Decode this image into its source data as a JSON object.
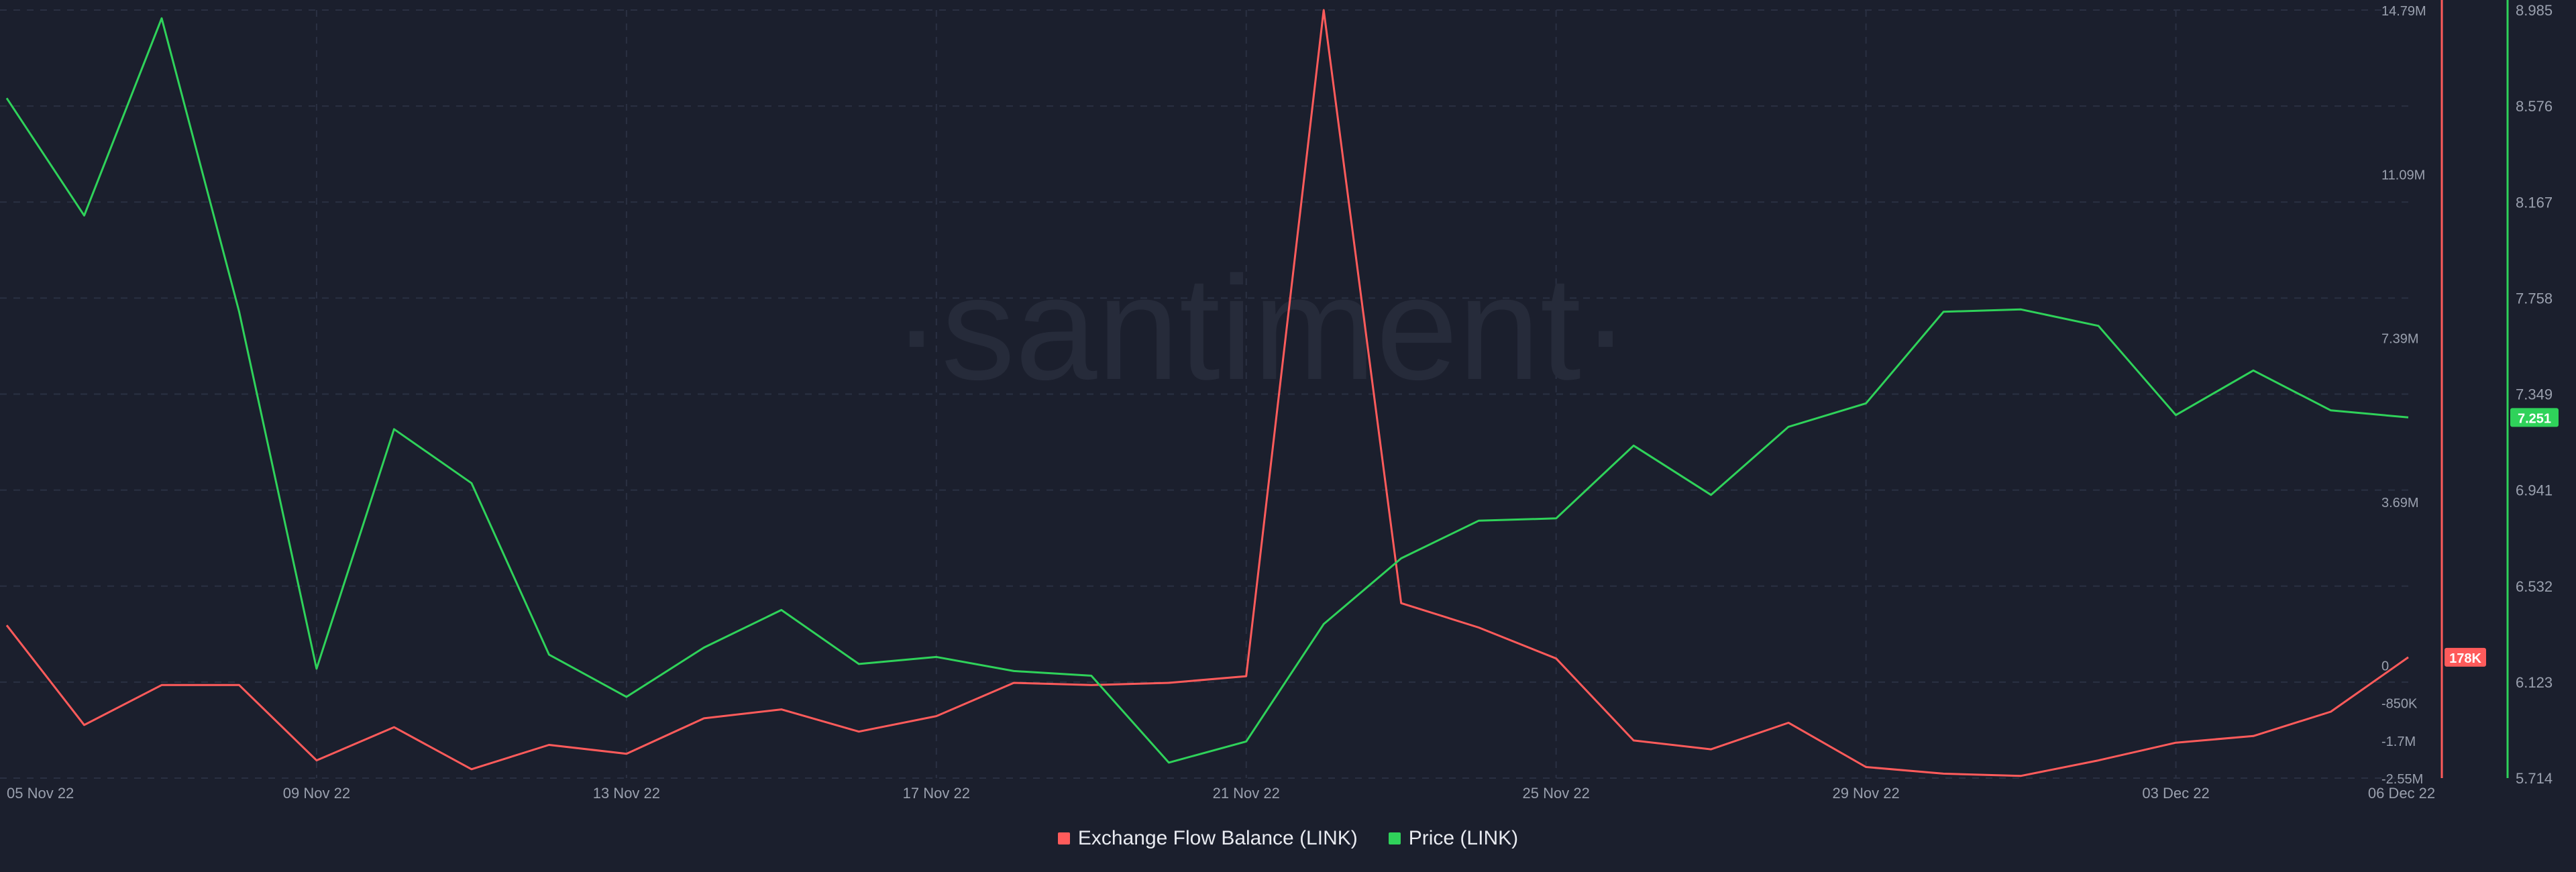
{
  "watermark": "·santiment·",
  "colors": {
    "background": "#1b1f2d",
    "grid": "#2a3042",
    "flow": "#ff5b5b",
    "price": "#2fd25a",
    "axis_text": "#9aa0ae"
  },
  "chart_data": {
    "type": "line",
    "x": [
      "05 Nov 22",
      "06 Nov 22",
      "07 Nov 22",
      "08 Nov 22",
      "09 Nov 22",
      "10 Nov 22",
      "11 Nov 22",
      "12 Nov 22",
      "13 Nov 22",
      "14 Nov 22",
      "15 Nov 22",
      "16 Nov 22",
      "17 Nov 22",
      "18 Nov 22",
      "19 Nov 22",
      "20 Nov 22",
      "21 Nov 22",
      "22 Nov 22",
      "23 Nov 22",
      "24 Nov 22",
      "25 Nov 22",
      "26 Nov 22",
      "27 Nov 22",
      "28 Nov 22",
      "29 Nov 22",
      "30 Nov 22",
      "01 Dec 22",
      "02 Dec 22",
      "03 Dec 22",
      "04 Dec 22",
      "05 Dec 22",
      "06 Dec 22"
    ],
    "x_tick_labels": [
      "05 Nov 22",
      "09 Nov 22",
      "13 Nov 22",
      "17 Nov 22",
      "21 Nov 22",
      "25 Nov 22",
      "29 Nov 22",
      "03 Dec 22",
      "06 Dec 22"
    ],
    "series": [
      {
        "name": "Exchange Flow Balance (LINK)",
        "axis": "left",
        "values": [
          0.9,
          -1.35,
          -0.45,
          -0.45,
          -2.15,
          -1.4,
          -2.35,
          -1.8,
          -2.0,
          -1.2,
          -1.0,
          -1.5,
          -1.15,
          -0.4,
          -0.45,
          -0.4,
          -0.25,
          14.79,
          1.4,
          0.85,
          0.15,
          -1.7,
          -1.9,
          -1.3,
          -2.3,
          -2.45,
          -2.5,
          -2.15,
          -1.75,
          -1.6,
          -1.05,
          0.178
        ],
        "last_label": "178K"
      },
      {
        "name": "Price (LINK)",
        "axis": "right",
        "values": [
          8.61,
          8.11,
          8.95,
          7.7,
          6.18,
          7.2,
          6.97,
          6.24,
          6.06,
          6.27,
          6.43,
          6.2,
          6.23,
          6.17,
          6.15,
          5.78,
          5.87,
          6.37,
          6.65,
          6.81,
          6.82,
          7.13,
          6.92,
          7.21,
          7.31,
          7.7,
          7.71,
          7.64,
          7.26,
          7.45,
          7.28,
          7.25
        ],
        "last_label": "7.251"
      }
    ],
    "left_axis_ticks": [
      "14.79M",
      "11.09M",
      "7.39M",
      "3.69M",
      "0",
      "-850K",
      "-1.7M",
      "-2.55M"
    ],
    "right_axis_ticks": [
      "8.985",
      "8.576",
      "8.167",
      "7.758",
      "7.349",
      "6.941",
      "6.532",
      "6.123",
      "5.714"
    ],
    "left_ylim": [
      -2.55,
      14.79
    ],
    "right_ylim": [
      5.714,
      8.985
    ],
    "grid": true,
    "legend": "bottom-center"
  },
  "legend": {
    "items": [
      {
        "label": "Exchange Flow Balance (LINK)",
        "color": "#ff5b5b"
      },
      {
        "label": "Price (LINK)",
        "color": "#2fd25a"
      }
    ]
  }
}
